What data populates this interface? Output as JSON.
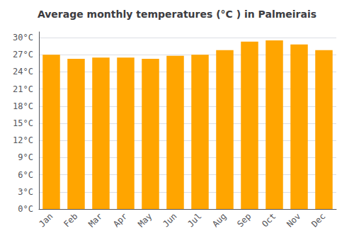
{
  "chart_data": {
    "type": "bar",
    "title": "Average monthly temperatures (°C ) in Palmeirais",
    "categories": [
      "Jan",
      "Feb",
      "Mar",
      "Apr",
      "May",
      "Jun",
      "Jul",
      "Aug",
      "Sep",
      "Oct",
      "Nov",
      "Dec"
    ],
    "values": [
      27.0,
      26.3,
      26.5,
      26.5,
      26.3,
      26.8,
      27.0,
      27.8,
      29.3,
      29.5,
      28.8,
      27.8
    ],
    "color": "#FFA500",
    "ylim": [
      0,
      31
    ],
    "yticks": [
      {
        "value": 0,
        "label": "0°C"
      },
      {
        "value": 3,
        "label": "3°C"
      },
      {
        "value": 6,
        "label": "6°C"
      },
      {
        "value": 9,
        "label": "9°C"
      },
      {
        "value": 12,
        "label": "12°C"
      },
      {
        "value": 15,
        "label": "15°C"
      },
      {
        "value": 18,
        "label": "18°C"
      },
      {
        "value": 21,
        "label": "21°C"
      },
      {
        "value": 24,
        "label": "24°C"
      },
      {
        "value": 27,
        "label": "27°C"
      },
      {
        "value": 30,
        "label": "30°C"
      }
    ],
    "grid": true
  }
}
